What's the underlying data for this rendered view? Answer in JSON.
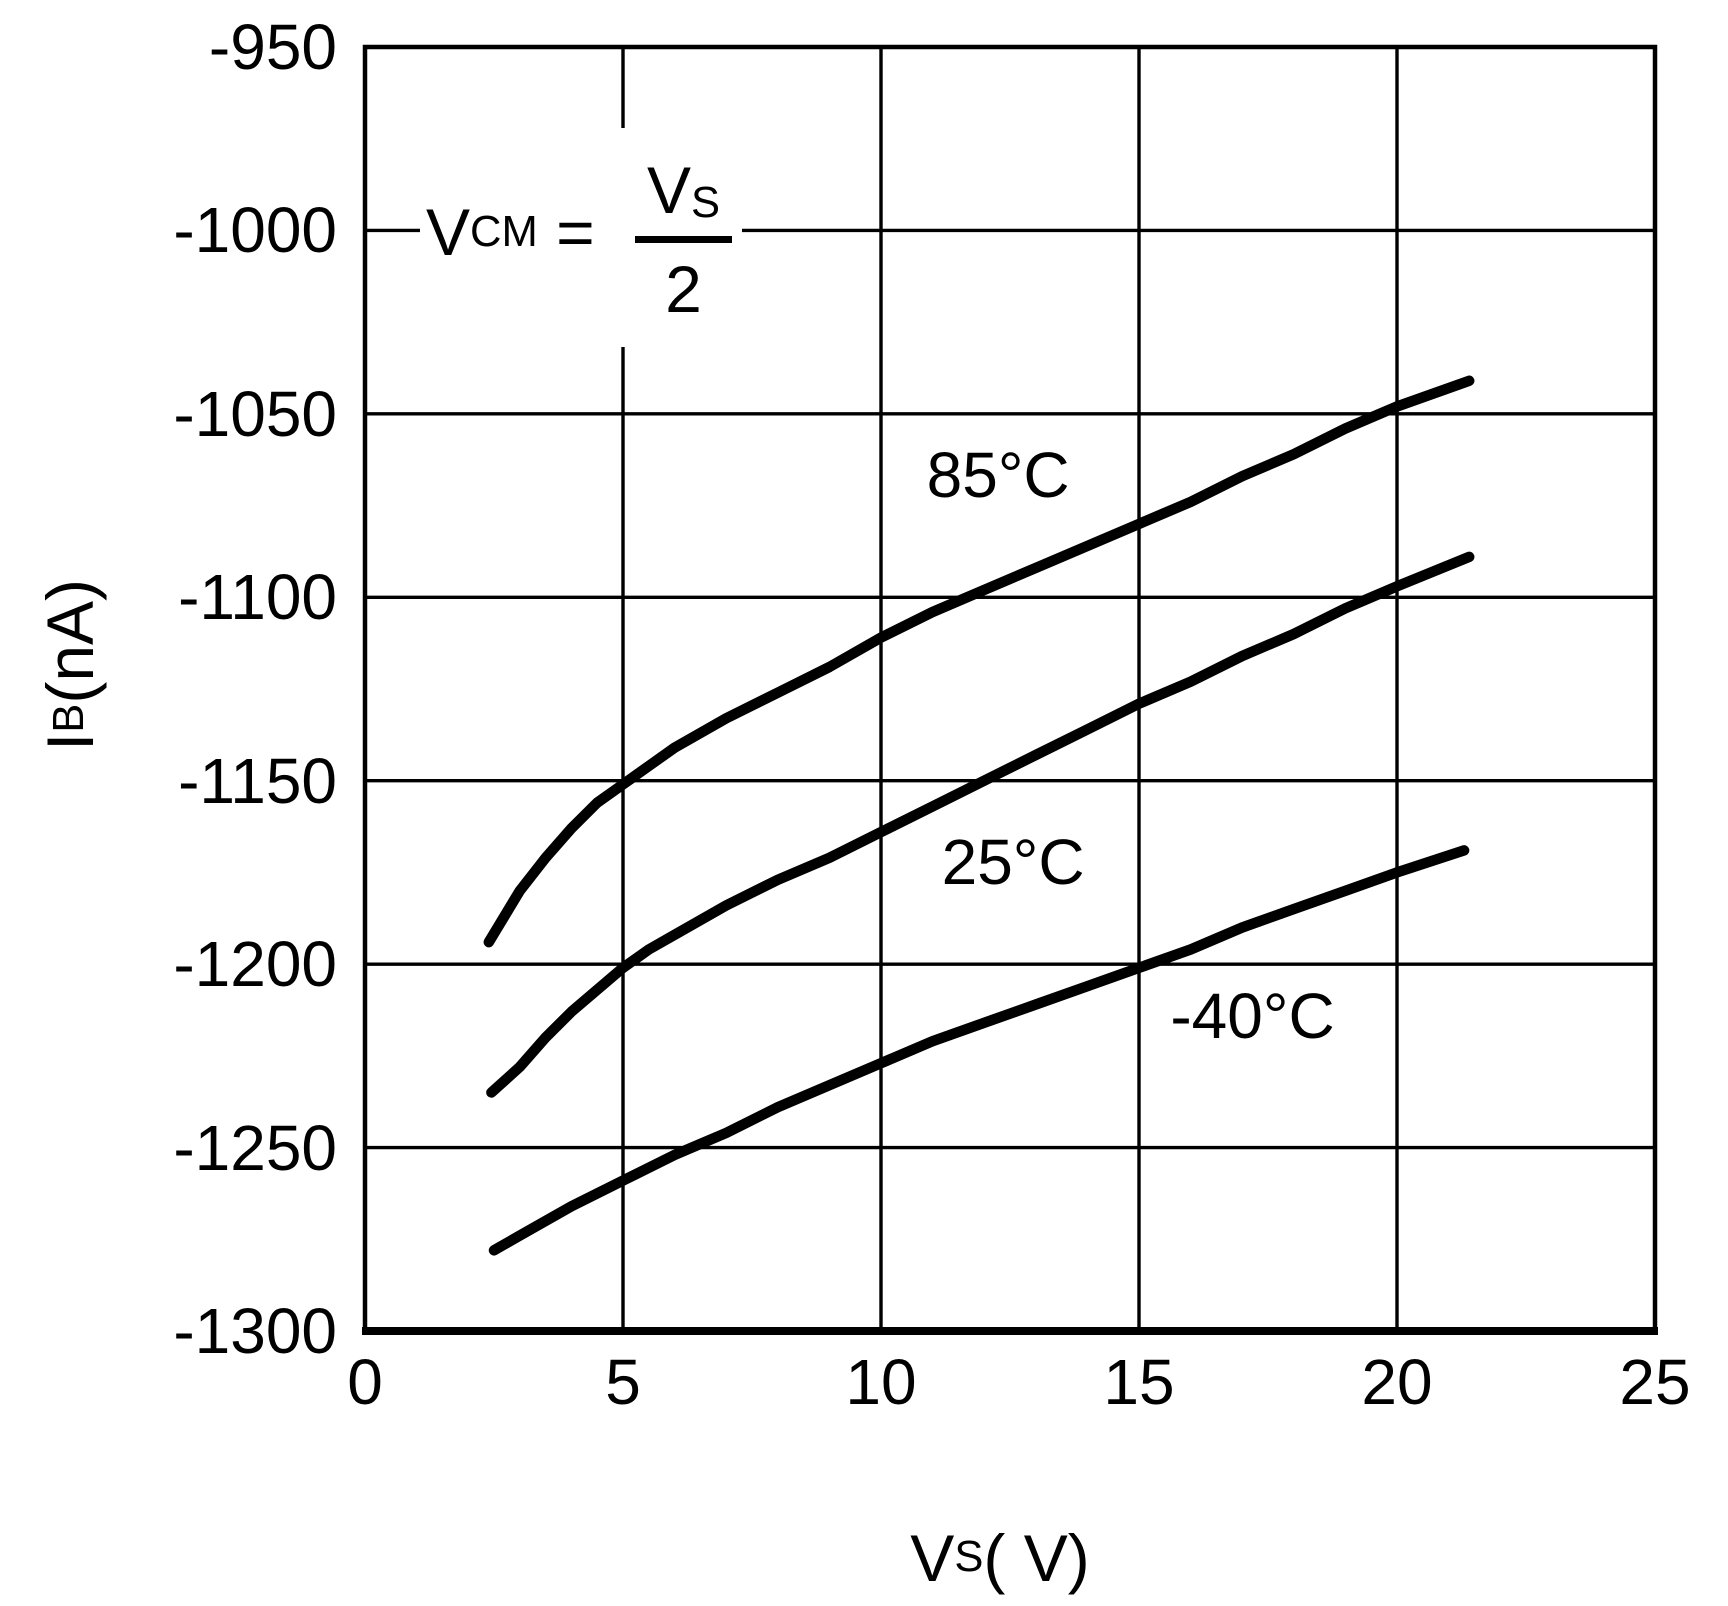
{
  "chart_data": {
    "type": "line",
    "title": "",
    "xlabel": {
      "base": "V",
      "sub": "S",
      "unit": " ( V)"
    },
    "ylabel": {
      "base": "I",
      "sub": "B",
      "unit": " (nA)"
    },
    "xlim": [
      0,
      25
    ],
    "ylim": [
      -1300,
      -950
    ],
    "xticks": [
      0,
      5,
      10,
      15,
      20,
      25
    ],
    "yticks": [
      -950,
      -1000,
      -1050,
      -1100,
      -1150,
      -1200,
      -1250,
      -1300
    ],
    "grid": true,
    "line_color": "#000000",
    "annotation": {
      "lhs_base": "V",
      "lhs_sub": "CM",
      "equals": " = ",
      "num_base": "V",
      "num_sub": "S",
      "den": "2",
      "meaning": "VCM = VS/2"
    },
    "series": [
      {
        "name": "85°C",
        "label_anchor": [
          12.27,
          -1066.7
        ],
        "points": [
          [
            2.4,
            -1194
          ],
          [
            3,
            -1180
          ],
          [
            3.5,
            -1171
          ],
          [
            4,
            -1163
          ],
          [
            4.5,
            -1156
          ],
          [
            5,
            -1151
          ],
          [
            5.5,
            -1146
          ],
          [
            6,
            -1141
          ],
          [
            7,
            -1133
          ],
          [
            8,
            -1126
          ],
          [
            9,
            -1119
          ],
          [
            10,
            -1111
          ],
          [
            11,
            -1104
          ],
          [
            12,
            -1098
          ],
          [
            13,
            -1092
          ],
          [
            14,
            -1086
          ],
          [
            15,
            -1080
          ],
          [
            16,
            -1074
          ],
          [
            17,
            -1067
          ],
          [
            18,
            -1061
          ],
          [
            19,
            -1054
          ],
          [
            20,
            -1048
          ],
          [
            21.4,
            -1041
          ]
        ]
      },
      {
        "name": "25°C",
        "label_anchor": [
          12.56,
          -1172.2
        ],
        "points": [
          [
            2.45,
            -1235
          ],
          [
            3,
            -1228
          ],
          [
            3.5,
            -1220
          ],
          [
            4,
            -1213
          ],
          [
            4.5,
            -1207
          ],
          [
            5,
            -1201
          ],
          [
            5.5,
            -1196
          ],
          [
            6,
            -1192
          ],
          [
            7,
            -1184
          ],
          [
            8,
            -1177
          ],
          [
            9,
            -1171
          ],
          [
            10,
            -1164
          ],
          [
            11,
            -1157
          ],
          [
            12,
            -1150
          ],
          [
            13,
            -1143
          ],
          [
            14,
            -1136
          ],
          [
            15,
            -1129
          ],
          [
            16,
            -1123
          ],
          [
            17,
            -1116
          ],
          [
            18,
            -1110
          ],
          [
            19,
            -1103
          ],
          [
            20,
            -1097
          ],
          [
            21.4,
            -1089
          ]
        ]
      },
      {
        "name": "-40°C",
        "label_anchor": [
          17.2,
          -1214
        ],
        "points": [
          [
            2.5,
            -1278
          ],
          [
            3,
            -1274
          ],
          [
            4,
            -1266
          ],
          [
            5,
            -1259
          ],
          [
            6,
            -1252
          ],
          [
            7,
            -1246
          ],
          [
            8,
            -1239
          ],
          [
            9,
            -1233
          ],
          [
            10,
            -1227
          ],
          [
            11,
            -1221
          ],
          [
            12,
            -1216
          ],
          [
            13,
            -1211
          ],
          [
            14,
            -1206
          ],
          [
            15,
            -1201
          ],
          [
            16,
            -1196
          ],
          [
            17,
            -1190
          ],
          [
            18,
            -1185
          ],
          [
            19,
            -1180
          ],
          [
            20,
            -1175
          ],
          [
            21.3,
            -1169
          ]
        ]
      }
    ]
  }
}
